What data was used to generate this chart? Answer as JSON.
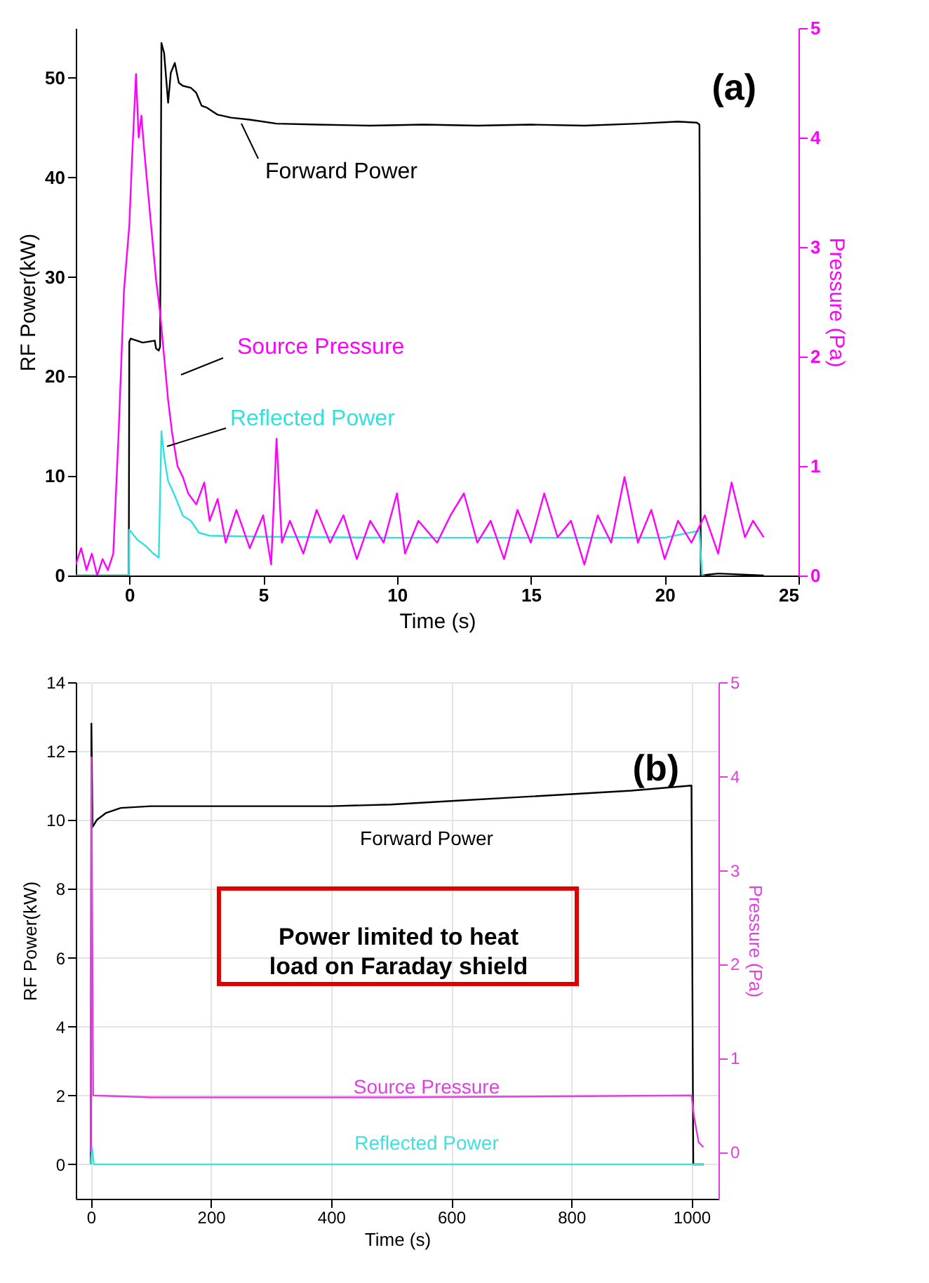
{
  "chart_data": [
    {
      "type": "line",
      "xlabel": "Time (s)",
      "ylabel": "RF Power(kW)",
      "y2label": "Pressure (Pa)",
      "xlim": [
        -2,
        25
      ],
      "ylim": [
        0,
        55
      ],
      "y2lim": [
        0,
        5
      ],
      "xticks": [
        0,
        5,
        10,
        15,
        20,
        25
      ],
      "yticks": [
        0,
        10,
        20,
        30,
        40,
        50
      ],
      "y2ticks": [
        0,
        1,
        2,
        3,
        4,
        5
      ],
      "grid": false,
      "annotations": [
        "(a)"
      ],
      "series": [
        {
          "name": "Forward Power",
          "color": "#000000",
          "x": [
            -2,
            -0.02,
            0,
            0.05,
            0.5,
            0.95,
            1.0,
            1.1,
            1.15,
            1.2,
            1.3,
            1.45,
            1.55,
            1.7,
            1.85,
            2.0,
            2.3,
            2.5,
            2.7,
            2.9,
            3.3,
            3.8,
            4.5,
            5.5,
            7,
            9,
            11,
            13,
            15,
            17,
            19,
            20.5,
            21.2,
            21.3,
            21.35,
            22,
            23.7
          ],
          "values": [
            0,
            0,
            23.5,
            23.8,
            23.4,
            23.6,
            22.8,
            22.6,
            23,
            53.5,
            52.5,
            47.5,
            50.5,
            51.5,
            49.5,
            49.2,
            49,
            48.5,
            47.2,
            47,
            46.3,
            46,
            45.8,
            45.4,
            45.3,
            45.2,
            45.3,
            45.2,
            45.3,
            45.2,
            45.4,
            45.6,
            45.5,
            45.3,
            0,
            0.2,
            0
          ]
        },
        {
          "name": "Reflected Power",
          "color": "#33e0e0",
          "x": [
            -2,
            -0.02,
            0,
            0.3,
            0.6,
            0.9,
            1.1,
            1.2,
            1.3,
            1.45,
            1.7,
            2.0,
            2.3,
            2.6,
            3.0,
            5,
            10,
            15,
            20,
            21.3,
            21.4,
            21.5
          ],
          "values": [
            0,
            0,
            4.6,
            3.6,
            3.0,
            2.2,
            1.8,
            14.5,
            12,
            9.5,
            8,
            6,
            5.5,
            4.3,
            4.0,
            3.9,
            3.8,
            3.8,
            3.8,
            4.5,
            0,
            0
          ]
        },
        {
          "name": "Source Pressure",
          "color": "#ff00ff",
          "axis": "y2",
          "x": [
            -2,
            -1.8,
            -1.6,
            -1.4,
            -1.2,
            -1.0,
            -0.8,
            -0.6,
            -0.4,
            -0.2,
            0,
            0.1,
            0.25,
            0.35,
            0.45,
            0.55,
            0.7,
            0.85,
            1.0,
            1.15,
            1.3,
            1.45,
            1.6,
            1.8,
            2.0,
            2.2,
            2.5,
            2.8,
            3.0,
            3.3,
            3.6,
            4.0,
            4.5,
            5.0,
            5.3,
            5.5,
            5.7,
            6.0,
            6.5,
            7.0,
            7.5,
            8.0,
            8.5,
            9.0,
            9.5,
            10.0,
            10.3,
            10.8,
            11.5,
            12.0,
            12.5,
            13.0,
            13.5,
            14.0,
            14.5,
            15.0,
            15.5,
            16.0,
            16.5,
            17.0,
            17.5,
            18.0,
            18.5,
            19.0,
            19.5,
            20.0,
            20.5,
            21.0,
            21.5,
            22.0,
            22.5,
            23.0,
            23.3,
            23.7
          ],
          "values": [
            0.1,
            0.25,
            0.05,
            0.2,
            0.0,
            0.15,
            0.05,
            0.2,
            1.3,
            2.6,
            3.2,
            3.8,
            4.58,
            4.0,
            4.2,
            3.9,
            3.5,
            3.1,
            2.7,
            2.4,
            2.0,
            1.6,
            1.3,
            1.0,
            0.9,
            0.75,
            0.65,
            0.85,
            0.5,
            0.7,
            0.3,
            0.6,
            0.25,
            0.55,
            0.1,
            1.25,
            0.3,
            0.5,
            0.2,
            0.6,
            0.3,
            0.55,
            0.15,
            0.5,
            0.3,
            0.75,
            0.2,
            0.5,
            0.3,
            0.55,
            0.75,
            0.3,
            0.5,
            0.15,
            0.6,
            0.3,
            0.75,
            0.35,
            0.5,
            0.1,
            0.55,
            0.3,
            0.9,
            0.3,
            0.6,
            0.15,
            0.5,
            0.3,
            0.55,
            0.2,
            0.85,
            0.35,
            0.5,
            0.35
          ]
        }
      ]
    },
    {
      "type": "line",
      "xlabel": "Time (s)",
      "ylabel": "RF Power(kW)",
      "y2label": "Pressure (Pa)",
      "xlim": [
        -25,
        1045
      ],
      "ylim": [
        -1,
        14
      ],
      "y2lim": [
        -0.5,
        5
      ],
      "xticks": [
        0,
        200,
        400,
        600,
        800,
        1000
      ],
      "yticks": [
        0,
        2,
        4,
        6,
        8,
        10,
        12,
        14
      ],
      "y2ticks": [
        0,
        1,
        2,
        3,
        4,
        5
      ],
      "grid": true,
      "annotations": [
        "(b)",
        "Power limited to heat load on Faraday shield"
      ],
      "series": [
        {
          "name": "Forward Power",
          "color": "#000000",
          "x": [
            0,
            1,
            3,
            10,
            25,
            50,
            100,
            200,
            300,
            400,
            500,
            600,
            700,
            800,
            900,
            1000,
            1003,
            1020
          ],
          "values": [
            0,
            12.8,
            9.8,
            10.0,
            10.2,
            10.35,
            10.4,
            10.4,
            10.4,
            10.4,
            10.45,
            10.55,
            10.65,
            10.75,
            10.85,
            11.0,
            0,
            0
          ]
        },
        {
          "name": "Reflected Power",
          "color": "#40e0e0",
          "x": [
            0,
            2,
            5,
            1020
          ],
          "values": [
            0,
            0.5,
            0,
            0
          ]
        },
        {
          "name": "Source Pressure",
          "color": "#e040e0",
          "axis": "y2",
          "x": [
            0,
            1,
            4,
            100,
            500,
            1000,
            1005,
            1012,
            1020
          ],
          "values": [
            0,
            4.2,
            0.6,
            0.58,
            0.58,
            0.6,
            0.35,
            0.1,
            0.05
          ]
        }
      ]
    }
  ]
}
